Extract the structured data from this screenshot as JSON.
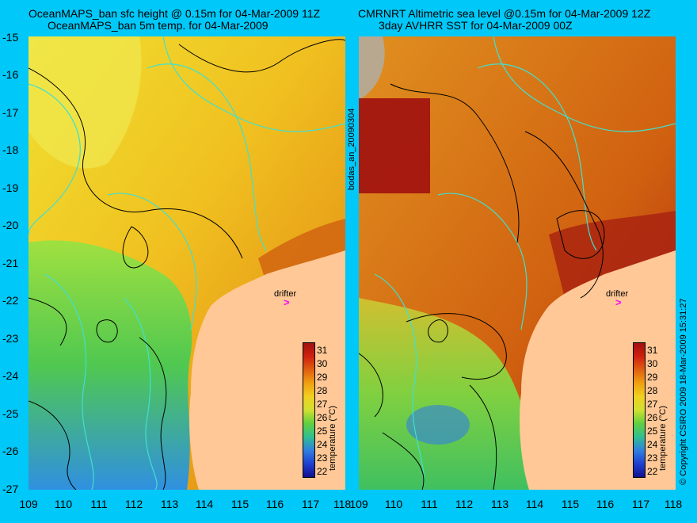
{
  "left_title": [
    "OceanMAPS_ban sfc height @ 0.15m for 04-Mar-2009 11Z",
    "OceanMAPS_ban 5m temp. for 04-Mar-2009"
  ],
  "right_title": [
    "CMRNRT Altimetric sea level  @0.15m  for 04-Mar-2009 12Z",
    "3day AVHRR SST for 04-Mar-2009 00Z"
  ],
  "y_ticks": [
    "-15",
    "-16",
    "-17",
    "-18",
    "-19",
    "-20",
    "-21",
    "-22",
    "-23",
    "-24",
    "-25",
    "-26",
    "-27"
  ],
  "x_ticks": [
    "109",
    "110",
    "111",
    "112",
    "113",
    "114",
    "115",
    "116",
    "117",
    "118"
  ],
  "colorbar": {
    "labels": [
      "31",
      "30",
      "29",
      "28",
      "27",
      "26",
      "25",
      "24",
      "23",
      "22"
    ],
    "title": "temperature (°C)"
  },
  "drifter_label": "drifter",
  "side_text_left": "bodas_an_20090304",
  "side_text_right": "© Copyright CSIRO 2009  18-Mar-2009 15:31:27",
  "colors": {
    "land": "#ffc896",
    "frame": "#00c8f8",
    "contour_cyan": "#40e0d0",
    "contour_black": "#000000",
    "drifter": "#ff00ff"
  }
}
